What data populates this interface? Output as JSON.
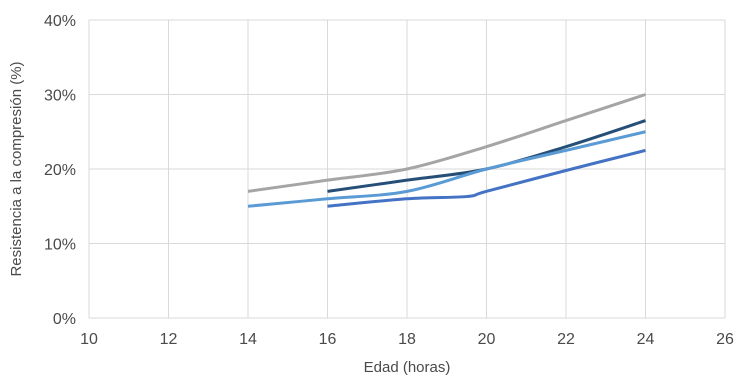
{
  "chart_data": {
    "type": "line",
    "title": "",
    "xlabel": "Edad (horas)",
    "ylabel": "Resistencia a la compresión (%)",
    "xlim": [
      10,
      26
    ],
    "ylim": [
      0,
      40
    ],
    "x_ticks": [
      10,
      12,
      14,
      16,
      18,
      20,
      22,
      24,
      26
    ],
    "y_ticks": [
      0,
      10,
      20,
      30,
      40
    ],
    "x_tick_labels": [
      "10",
      "12",
      "14",
      "16",
      "18",
      "20",
      "22",
      "24",
      "26"
    ],
    "y_tick_labels": [
      "0%",
      "10%",
      "20%",
      "30%",
      "40%"
    ],
    "grid": true,
    "legend": "none",
    "series": [
      {
        "color": "#a5a5a5",
        "x": [
          14,
          16,
          18,
          20,
          22,
          24
        ],
        "y": [
          17,
          18.5,
          20,
          23,
          26.5,
          30
        ]
      },
      {
        "color": "#264f78",
        "x": [
          16,
          18,
          20,
          22,
          24
        ],
        "y": [
          17,
          18.5,
          20,
          23,
          26.5
        ]
      },
      {
        "color": "#5b9bd5",
        "x": [
          14,
          16,
          18,
          20,
          22,
          24
        ],
        "y": [
          15,
          16,
          17,
          20,
          22.5,
          25
        ]
      },
      {
        "color": "#4472c4",
        "x": [
          16,
          18,
          19.5,
          20,
          22,
          24
        ],
        "y": [
          15,
          16,
          16.3,
          17,
          19.8,
          22.5
        ]
      }
    ]
  }
}
